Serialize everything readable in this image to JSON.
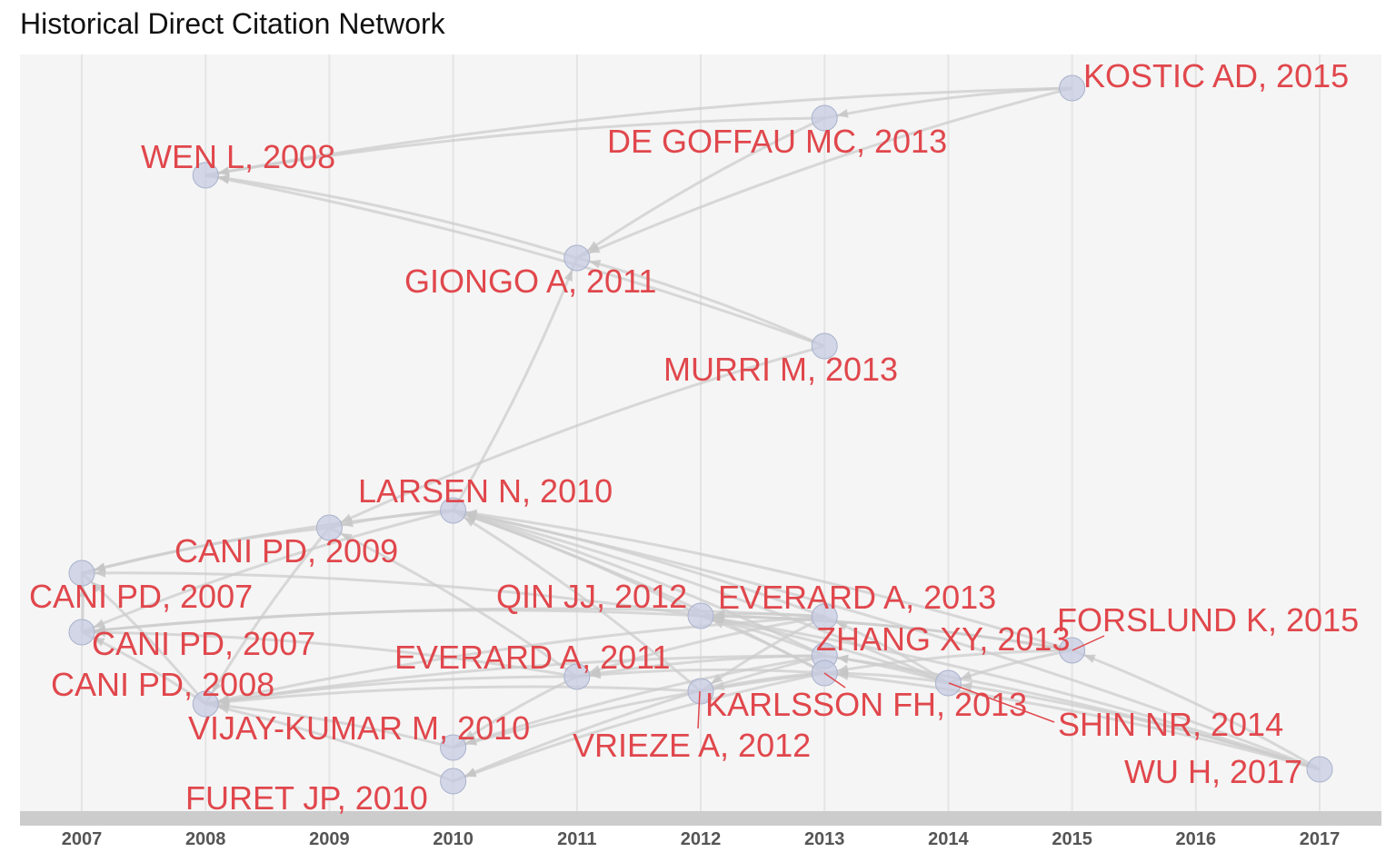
{
  "chart_data": {
    "type": "network",
    "title": "Historical Direct Citation Network",
    "x_ticks": [
      "2007",
      "2008",
      "2009",
      "2010",
      "2011",
      "2012",
      "2013",
      "2014",
      "2015",
      "2016",
      "2017"
    ],
    "xlim": [
      2007,
      2017
    ],
    "grid": true,
    "node_color": "#c5cbe0",
    "edge_color": "#cccccc",
    "label_color": "#e0474c",
    "nodes": [
      {
        "id": "kostic",
        "label": "KOSTIC AD, 2015",
        "year": 2015
      },
      {
        "id": "degoffau",
        "label": "DE GOFFAU MC, 2013",
        "year": 2013
      },
      {
        "id": "wen",
        "label": "WEN L, 2008",
        "year": 2008
      },
      {
        "id": "giongo",
        "label": "GIONGO A, 2011",
        "year": 2011
      },
      {
        "id": "murri",
        "label": "MURRI M, 2013",
        "year": 2013
      },
      {
        "id": "larsen",
        "label": "LARSEN N, 2010",
        "year": 2010
      },
      {
        "id": "cani2009",
        "label": "CANI PD, 2009",
        "year": 2009
      },
      {
        "id": "cani2007a",
        "label": "CANI PD, 2007",
        "year": 2007
      },
      {
        "id": "cani2007b",
        "label": "CANI PD, 2007",
        "year": 2007
      },
      {
        "id": "cani2008",
        "label": "CANI PD, 2008",
        "year": 2008
      },
      {
        "id": "qin",
        "label": "QIN JJ, 2012",
        "year": 2012
      },
      {
        "id": "everard2013",
        "label": "EVERARD A, 2013",
        "year": 2013
      },
      {
        "id": "zhang",
        "label": "ZHANG XY, 2013",
        "year": 2013
      },
      {
        "id": "forslund",
        "label": "FORSLUND K, 2015",
        "year": 2015
      },
      {
        "id": "everard2011",
        "label": "EVERARD A, 2011",
        "year": 2011
      },
      {
        "id": "karlsson",
        "label": "KARLSSON FH, 2013",
        "year": 2013
      },
      {
        "id": "shin",
        "label": "SHIN NR, 2014",
        "year": 2014
      },
      {
        "id": "vijay",
        "label": "VIJAY-KUMAR M, 2010",
        "year": 2010
      },
      {
        "id": "vrieze",
        "label": "VRIEZE A, 2012",
        "year": 2012
      },
      {
        "id": "wu",
        "label": "WU H, 2017",
        "year": 2017
      },
      {
        "id": "furet",
        "label": "FURET JP, 2010",
        "year": 2010
      }
    ],
    "edges": [
      [
        "kostic",
        "degoffau"
      ],
      [
        "kostic",
        "wen"
      ],
      [
        "kostic",
        "giongo"
      ],
      [
        "degoffau",
        "wen"
      ],
      [
        "degoffau",
        "giongo"
      ],
      [
        "giongo",
        "wen"
      ],
      [
        "murri",
        "giongo"
      ],
      [
        "murri",
        "wen"
      ],
      [
        "murri",
        "cani2009"
      ],
      [
        "larsen",
        "giongo"
      ],
      [
        "larsen",
        "cani2009"
      ],
      [
        "cani2009",
        "cani2007a"
      ],
      [
        "cani2009",
        "cani2008"
      ],
      [
        "larsen",
        "cani2007a"
      ],
      [
        "larsen",
        "cani2007b"
      ],
      [
        "qin",
        "larsen"
      ],
      [
        "everard2013",
        "larsen"
      ],
      [
        "zhang",
        "larsen"
      ],
      [
        "karlsson",
        "larsen"
      ],
      [
        "shin",
        "larsen"
      ],
      [
        "forslund",
        "larsen"
      ],
      [
        "wu",
        "larsen"
      ],
      [
        "qin",
        "cani2007a"
      ],
      [
        "qin",
        "cani2007b"
      ],
      [
        "everard2013",
        "cani2007b"
      ],
      [
        "everard2013",
        "qin"
      ],
      [
        "zhang",
        "qin"
      ],
      [
        "karlsson",
        "qin"
      ],
      [
        "shin",
        "qin"
      ],
      [
        "forslund",
        "qin"
      ],
      [
        "everard2011",
        "cani2007b"
      ],
      [
        "everard2011",
        "cani2008"
      ],
      [
        "everard2011",
        "cani2009"
      ],
      [
        "everard2013",
        "everard2011"
      ],
      [
        "zhang",
        "everard2011"
      ],
      [
        "karlsson",
        "everard2011"
      ],
      [
        "vrieze",
        "cani2008"
      ],
      [
        "vrieze",
        "larsen"
      ],
      [
        "karlsson",
        "vrieze"
      ],
      [
        "everard2013",
        "vrieze"
      ],
      [
        "vijay",
        "cani2008"
      ],
      [
        "everard2011",
        "vijay"
      ],
      [
        "zhang",
        "vijay"
      ],
      [
        "karlsson",
        "vijay"
      ],
      [
        "furet",
        "cani2008"
      ],
      [
        "karlsson",
        "furet"
      ],
      [
        "zhang",
        "furet"
      ],
      [
        "cani2008",
        "cani2007a"
      ],
      [
        "cani2008",
        "cani2007b"
      ],
      [
        "cani2007b",
        "cani2007a"
      ],
      [
        "shin",
        "everard2013"
      ],
      [
        "shin",
        "karlsson"
      ],
      [
        "shin",
        "zhang"
      ],
      [
        "forslund",
        "karlsson"
      ],
      [
        "forslund",
        "qin"
      ],
      [
        "forslund",
        "shin"
      ],
      [
        "wu",
        "forslund"
      ],
      [
        "wu",
        "karlsson"
      ],
      [
        "wu",
        "zhang"
      ],
      [
        "wu",
        "shin"
      ],
      [
        "wu",
        "qin"
      ],
      [
        "everard2013",
        "cani2008"
      ],
      [
        "zhang",
        "cani2008"
      ]
    ]
  }
}
